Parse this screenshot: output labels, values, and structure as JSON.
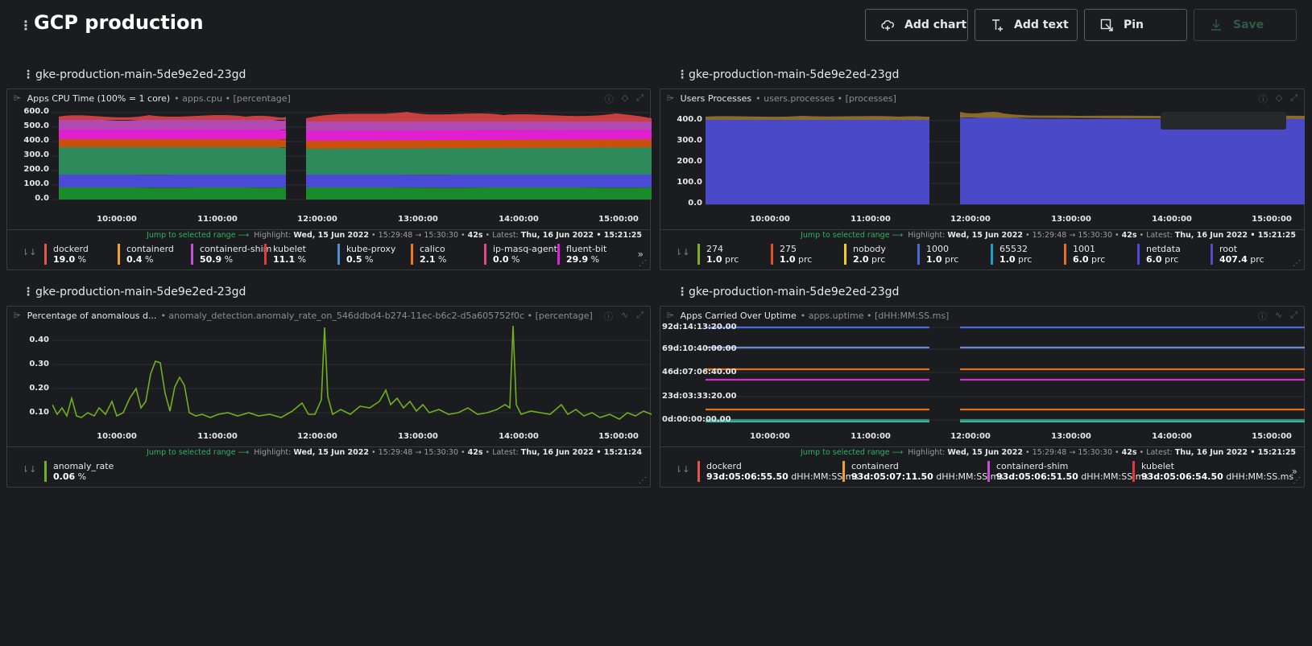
{
  "dashboard": {
    "title": "GCP production",
    "buttons": {
      "add_chart": "Add chart",
      "add_text": "Add text",
      "pin": "Pin",
      "save": "Save"
    }
  },
  "colors": {
    "bg": "#1b1c1f",
    "accent_green": "#2bb35e",
    "border": "#3a3c40"
  },
  "x_ticks": [
    "10:00:00",
    "11:00:00",
    "12:00:00",
    "13:00:00",
    "14:00:00",
    "15:00:00"
  ],
  "panels": [
    {
      "card_title": "gke-production-main-5de9e2ed-23gd",
      "title": "Apps CPU Time (100% = 1 core)",
      "context": "• apps.cpu • [percentage]",
      "y_ticks": [
        "600.0",
        "500.0",
        "400.0",
        "300.0",
        "200.0",
        "100.0",
        "0.0"
      ],
      "info": {
        "jump": "Jump to selected range",
        "highlight_label": "Highlight:",
        "highlight_date": "Wed, 15 Jun 2022",
        "highlight_range": "15:29:48 → 15:30:30",
        "duration": "42s",
        "latest_label": "Latest:",
        "latest": "Thu, 16 Jun 2022 • 15:21:25"
      },
      "legend": [
        {
          "name": "dockerd",
          "value": "19.0",
          "unit": "%",
          "color": "#e5534b"
        },
        {
          "name": "containerd",
          "value": "0.4",
          "unit": "%",
          "color": "#f0a030"
        },
        {
          "name": "containerd-shim",
          "value": "50.9",
          "unit": "%",
          "color": "#c44fd6"
        },
        {
          "name": "kubelet",
          "value": "11.1",
          "unit": "%",
          "color": "#e03a3a"
        },
        {
          "name": "kube-proxy",
          "value": "0.5",
          "unit": "%",
          "color": "#4f8fd6"
        },
        {
          "name": "calico",
          "value": "2.1",
          "unit": "%",
          "color": "#f07a1a"
        },
        {
          "name": "ip-masq-agent",
          "value": "0.0",
          "unit": "%",
          "color": "#e04a8a"
        },
        {
          "name": "fluent-bit",
          "value": "29.9",
          "unit": "%",
          "color": "#e020e0"
        }
      ],
      "more": "»"
    },
    {
      "card_title": "gke-production-main-5de9e2ed-23gd",
      "title": "Users Processes",
      "context": "• users.processes • [processes]",
      "y_ticks": [
        "400.0",
        "300.0",
        "200.0",
        "100.0",
        "0.0"
      ],
      "info": {
        "jump": "Jump to selected range",
        "highlight_label": "Highlight:",
        "highlight_date": "Wed, 15 Jun 2022",
        "highlight_range": "15:29:48 → 15:30:30",
        "duration": "42s",
        "latest_label": "Latest:",
        "latest": "Thu, 16 Jun 2022 • 15:21:25"
      },
      "legend": [
        {
          "name": "274",
          "value": "1.0",
          "unit": "prc",
          "color": "#7fb01e"
        },
        {
          "name": "275",
          "value": "1.0",
          "unit": "prc",
          "color": "#e0502a"
        },
        {
          "name": "nobody",
          "value": "2.0",
          "unit": "prc",
          "color": "#e8d21a"
        },
        {
          "name": "1000",
          "value": "1.0",
          "unit": "prc",
          "color": "#4a6ad6"
        },
        {
          "name": "65532",
          "value": "1.0",
          "unit": "prc",
          "color": "#1aa0c8"
        },
        {
          "name": "1001",
          "value": "6.0",
          "unit": "prc",
          "color": "#e0701a"
        },
        {
          "name": "netdata",
          "value": "6.0",
          "unit": "prc",
          "color": "#4a4ae0"
        },
        {
          "name": "root",
          "value": "407.4",
          "unit": "prc",
          "color": "#5a4ad0"
        }
      ],
      "more": ""
    },
    {
      "card_title": "gke-production-main-5de9e2ed-23gd",
      "title": "Percentage of anomalous d...",
      "context": "• anomaly_detection.anomaly_rate_on_546ddbd4-b274-11ec-b6c2-d5a605752f0c • [percentage]",
      "y_ticks": [
        "0.40",
        "0.30",
        "0.20",
        "0.10"
      ],
      "info": {
        "jump": "Jump to selected range",
        "highlight_label": "Highlight:",
        "highlight_date": "Wed, 15 Jun 2022",
        "highlight_range": "15:29:48 → 15:30:30",
        "duration": "42s",
        "latest_label": "Latest:",
        "latest": "Thu, 16 Jun 2022 • 15:21:24"
      },
      "legend": [
        {
          "name": "anomaly_rate",
          "value": "0.06",
          "unit": "%",
          "color": "#6fb01e"
        }
      ],
      "more": ""
    },
    {
      "card_title": "gke-production-main-5de9e2ed-23gd",
      "title": "Apps Carried Over Uptime",
      "context": "• apps.uptime • [dHH:MM:SS.ms]",
      "y_ticks": [
        "92d:14:13:20.00",
        "69d:10:40:00.00",
        "46d:07:06:40.00",
        "23d:03:33:20.00",
        "0d:00:00:00.00"
      ],
      "info": {
        "jump": "Jump to selected range",
        "highlight_label": "Highlight:",
        "highlight_date": "Wed, 15 Jun 2022",
        "highlight_range": "15:29:48 → 15:30:30",
        "duration": "42s",
        "latest_label": "Latest:",
        "latest": "Thu, 16 Jun 2022 • 15:21:25"
      },
      "legend": [
        {
          "name": "dockerd",
          "value": "93d:05:06:55.50",
          "unit": "dHH:MM:SS.ms",
          "color": "#e5534b"
        },
        {
          "name": "containerd",
          "value": "93d:05:07:11.50",
          "unit": "dHH:MM:SS.ms",
          "color": "#f0a030"
        },
        {
          "name": "containerd-shim",
          "value": "93d:05:06:51.50",
          "unit": "dHH:MM:SS.ms",
          "color": "#c44fd6"
        },
        {
          "name": "kubelet",
          "value": "93d:05:06:54.50",
          "unit": "dHH:MM:SS.ms",
          "color": "#e03a3a"
        }
      ],
      "more": "»"
    }
  ]
}
